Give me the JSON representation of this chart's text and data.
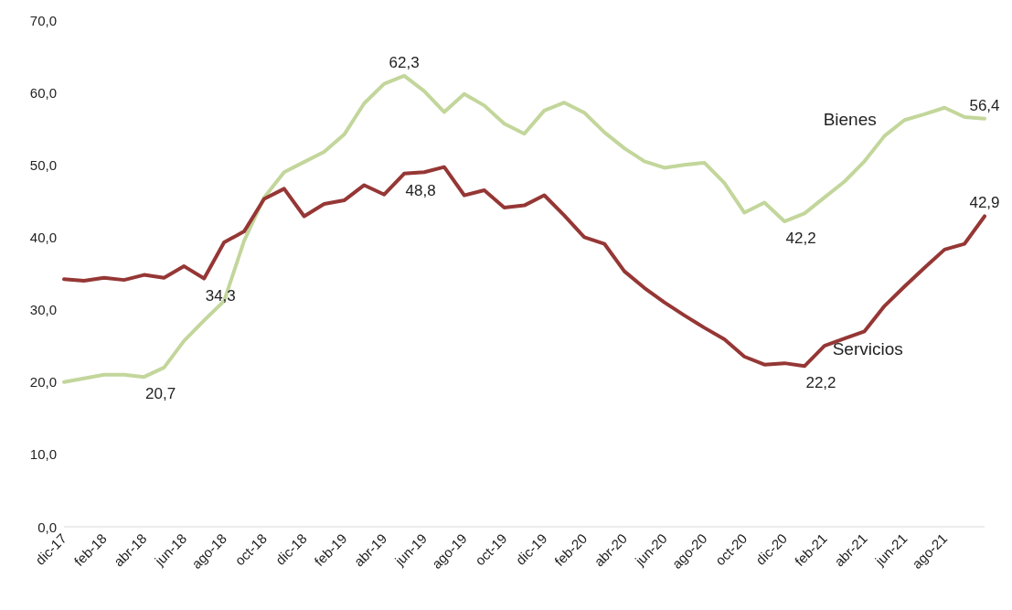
{
  "chart_data": {
    "type": "line",
    "categories": [
      "dic-17",
      null,
      "feb-18",
      null,
      "abr-18",
      null,
      "jun-18",
      null,
      "ago-18",
      null,
      "oct-18",
      null,
      "dic-18",
      null,
      "feb-19",
      null,
      "abr-19",
      null,
      "jun-19",
      null,
      "ago-19",
      null,
      "oct-19",
      null,
      "dic-19",
      null,
      "feb-20",
      null,
      "abr-20",
      null,
      "jun-20",
      null,
      "ago-20",
      null,
      "oct-20",
      null,
      "dic-20",
      null,
      "feb-21",
      null,
      "abr-21",
      null,
      "jun-21",
      null,
      "ago-21",
      null,
      null
    ],
    "series": [
      {
        "name": "Bienes",
        "color": "#c3d69b",
        "values": [
          20.0,
          20.5,
          21.0,
          21.0,
          20.7,
          22.0,
          25.7,
          28.5,
          31.2,
          39.5,
          45.5,
          49.0,
          50.4,
          51.8,
          54.2,
          58.5,
          61.2,
          62.3,
          60.2,
          57.3,
          59.8,
          58.2,
          55.7,
          54.3,
          57.5,
          58.6,
          57.2,
          54.5,
          52.3,
          50.5,
          49.6,
          50.0,
          50.3,
          47.5,
          43.4,
          44.8,
          42.2,
          43.3,
          45.5,
          47.7,
          50.5,
          54.0,
          56.2,
          57.0,
          57.9,
          56.6,
          56.4
        ],
        "value_labels": [
          null,
          null,
          null,
          null,
          "20,7",
          null,
          null,
          null,
          null,
          null,
          null,
          null,
          null,
          null,
          null,
          null,
          null,
          "62,3",
          null,
          null,
          null,
          null,
          null,
          null,
          null,
          null,
          null,
          null,
          null,
          null,
          null,
          null,
          null,
          null,
          null,
          null,
          "42,2",
          null,
          null,
          null,
          null,
          null,
          null,
          null,
          null,
          null,
          "56,4"
        ]
      },
      {
        "name": "Servicios",
        "color": "#953735",
        "values": [
          34.2,
          34.0,
          34.4,
          34.1,
          34.8,
          34.4,
          36.0,
          34.3,
          39.3,
          40.8,
          45.3,
          46.7,
          42.9,
          44.6,
          45.1,
          47.2,
          45.9,
          48.8,
          49.0,
          49.7,
          45.8,
          46.5,
          44.1,
          44.4,
          45.8,
          43.0,
          40.0,
          39.1,
          35.3,
          33.0,
          31.0,
          29.2,
          27.5,
          25.9,
          23.5,
          22.4,
          22.6,
          22.2,
          25.0,
          26.0,
          27.0,
          30.5,
          33.2,
          35.8,
          38.3,
          39.1,
          42.9
        ],
        "value_labels": [
          null,
          null,
          null,
          null,
          null,
          null,
          null,
          "34,3",
          null,
          null,
          null,
          null,
          null,
          null,
          null,
          null,
          null,
          "48,8",
          null,
          null,
          null,
          null,
          null,
          null,
          null,
          null,
          null,
          null,
          null,
          null,
          null,
          null,
          null,
          null,
          null,
          null,
          null,
          "22,2",
          null,
          null,
          null,
          null,
          null,
          null,
          null,
          null,
          "42,9"
        ]
      }
    ],
    "ylim": [
      0,
      70
    ],
    "yticks": [
      {
        "value": 0,
        "label": "0,0"
      },
      {
        "value": 10,
        "label": "10,0"
      },
      {
        "value": 20,
        "label": "20,0"
      },
      {
        "value": 30,
        "label": "30,0"
      },
      {
        "value": 40,
        "label": "40,0"
      },
      {
        "value": 50,
        "label": "50,0"
      },
      {
        "value": 60,
        "label": "60,0"
      },
      {
        "value": 70,
        "label": "70,0"
      }
    ],
    "grid": false,
    "legend": false,
    "marker": "none",
    "line_style": "solid"
  }
}
